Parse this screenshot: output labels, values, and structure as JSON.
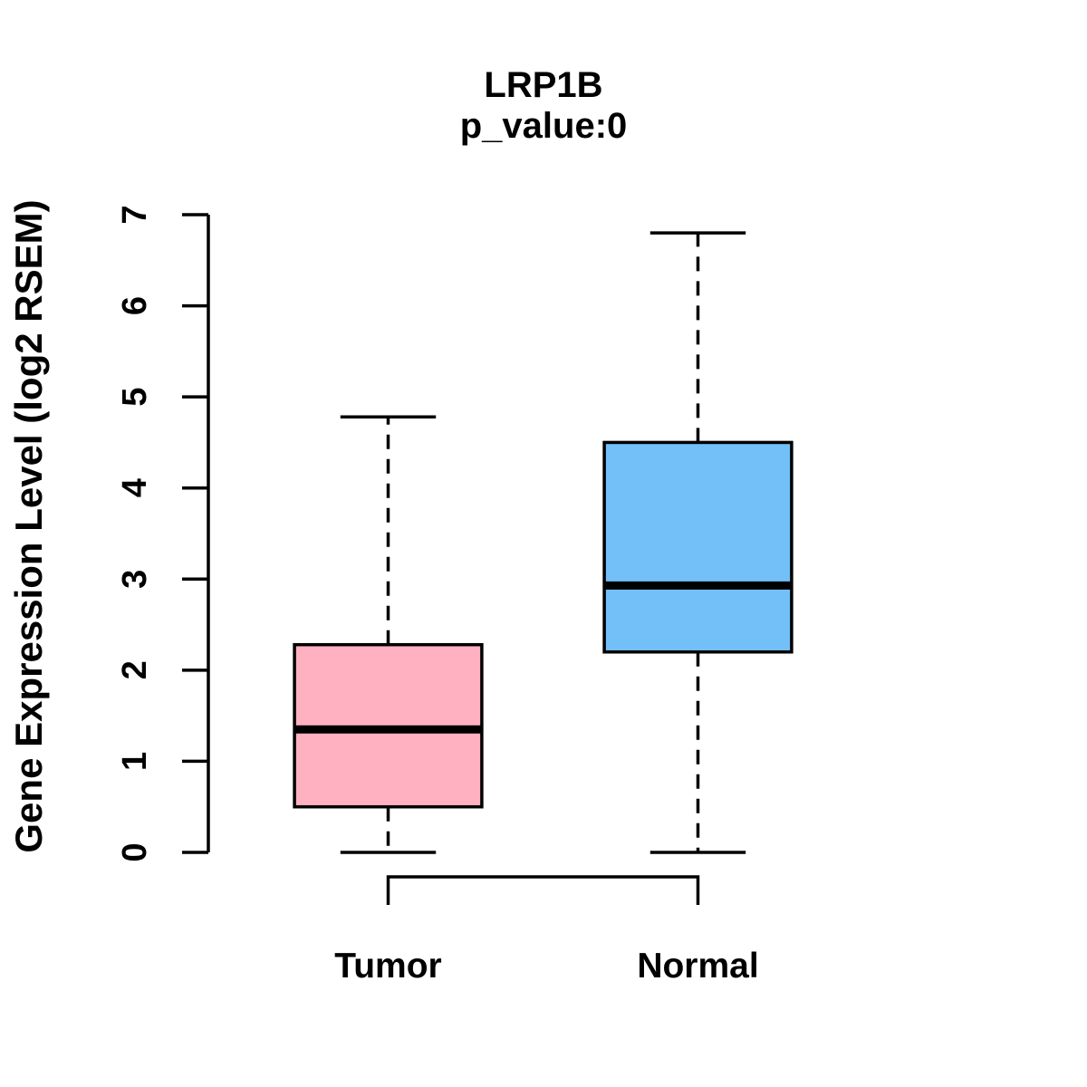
{
  "figure": {
    "background": "#FFFFFF",
    "text_color": "#000000"
  },
  "chart_data": {
    "type": "boxplot",
    "title": "LRP1B",
    "subtitle": "p_value:0",
    "ylabel": "Gene Expression Level (log2 RSEM)",
    "xlabel": "",
    "categories": [
      "Tumor",
      "Normal"
    ],
    "ylim": [
      0,
      7
    ],
    "yticks": [
      0,
      1,
      2,
      3,
      4,
      5,
      6,
      7
    ],
    "grid": false,
    "legend": "none",
    "stroke_color": "#000000",
    "comparison_bracket": true,
    "series": [
      {
        "name": "Tumor",
        "fill": "#FFB1C1",
        "min": 0,
        "q1": 0.5,
        "median": 1.35,
        "q3": 2.28,
        "max": 4.78
      },
      {
        "name": "Normal",
        "fill": "#73BFF8",
        "min": 0,
        "q1": 2.2,
        "median": 2.93,
        "q3": 4.5,
        "max": 6.8
      }
    ]
  }
}
